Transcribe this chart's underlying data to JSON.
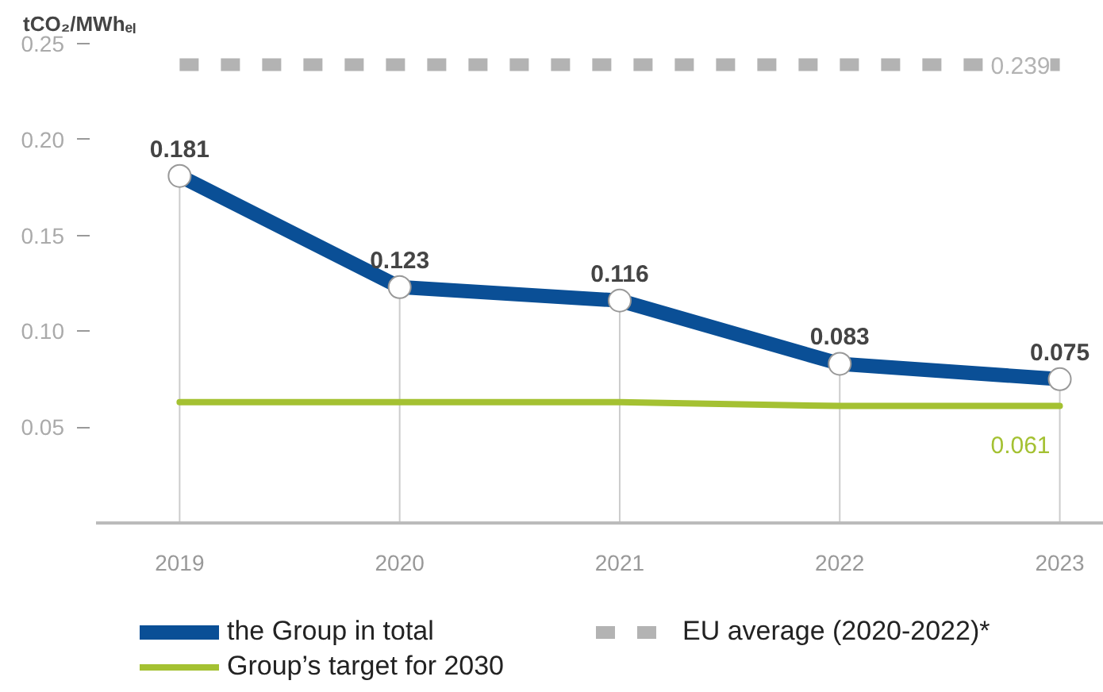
{
  "chart_data": {
    "type": "line",
    "ylabel": "tCO₂/MWhₑₗ",
    "categories": [
      "2019",
      "2020",
      "2021",
      "2022",
      "2023"
    ],
    "series": [
      {
        "name": "the Group in total",
        "color": "#0a4f96",
        "values": [
          0.181,
          0.123,
          0.116,
          0.083,
          0.075
        ],
        "value_labels": [
          "0.181",
          "0.123",
          "0.116",
          "0.083",
          "0.075"
        ],
        "marker": "circle"
      },
      {
        "name": "EU average (2020-2022)*",
        "color": "#b3b3b3",
        "values": [
          0.239,
          0.239,
          0.239,
          0.239,
          0.239
        ],
        "value_labels": [
          null,
          null,
          null,
          null,
          "0.239"
        ],
        "line_style": "dashed",
        "marker": "none"
      },
      {
        "name": "Group’s target for 2030",
        "color": "#a4c132",
        "values": [
          0.063,
          0.063,
          0.063,
          0.061,
          0.061
        ],
        "value_labels": [
          null,
          null,
          null,
          null,
          "0.061"
        ],
        "marker": "none"
      }
    ],
    "ylim": [
      0,
      0.25
    ],
    "yticks": [
      {
        "value": 0.05,
        "label": "0.05"
      },
      {
        "value": 0.1,
        "label": "0.10"
      },
      {
        "value": 0.15,
        "label": "0.15"
      },
      {
        "value": 0.2,
        "label": "0.20"
      },
      {
        "value": 0.25,
        "label": "0.25"
      }
    ],
    "grid": "x",
    "legend": "bottom"
  }
}
